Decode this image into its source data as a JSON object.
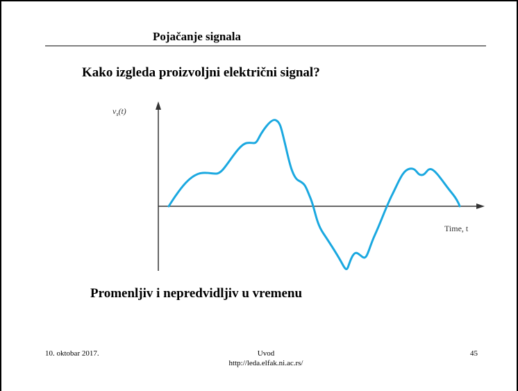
{
  "slide": {
    "title": "Pojačanje signala",
    "subtitle": "Kako izgleda proizvoljni električni signal?",
    "figure": {
      "y_label": {
        "symbol": "v",
        "subscript": "s",
        "argument": "(t)"
      },
      "x_label": "Time, t"
    },
    "caption": "Promenljiv i nepredvidljiv u vremenu",
    "footer": {
      "date": "10. oktobar 2017.",
      "section": "Uvod",
      "url": "http://leda.elfak.ni.ac.rs/",
      "page": "45"
    }
  }
}
